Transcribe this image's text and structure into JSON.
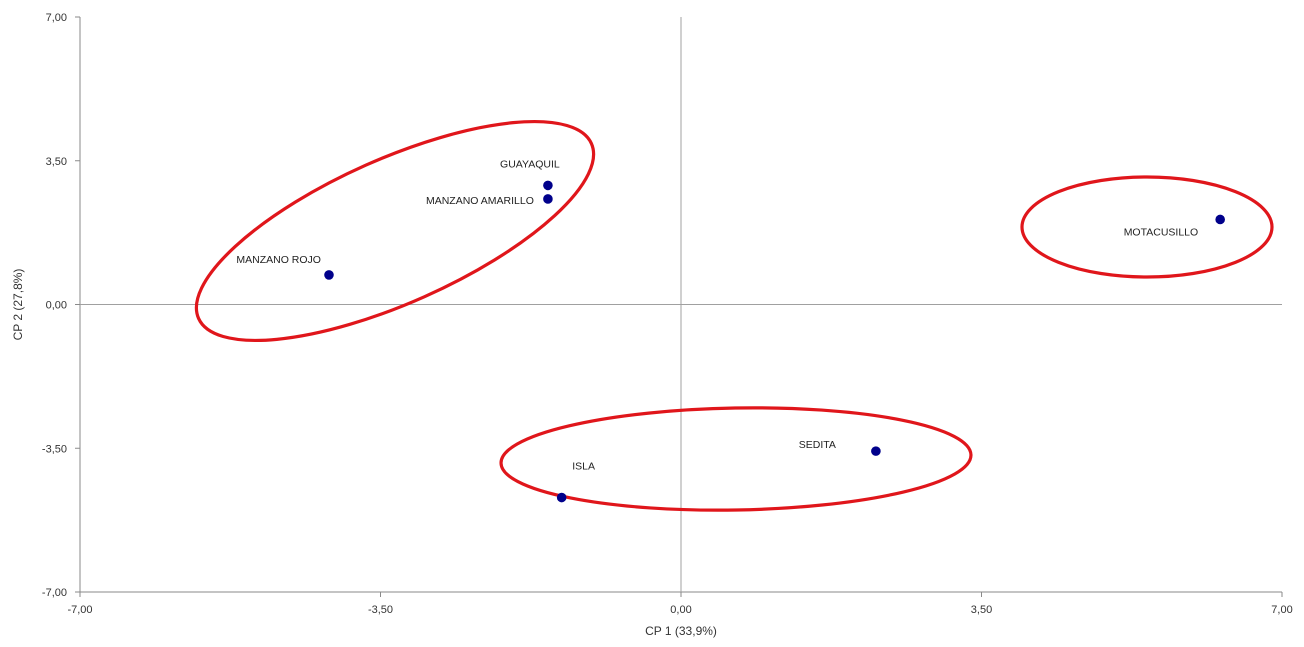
{
  "chart_data": {
    "type": "scatter",
    "xlabel": "CP 1 (33,9%)",
    "ylabel": "CP 2 (27,8%)",
    "xlim": [
      -7.0,
      7.0
    ],
    "ylim": [
      -7.0,
      7.0
    ],
    "xticks": [
      "-7,00",
      "-3,50",
      "0,00",
      "3,50",
      "7,00"
    ],
    "yticks": [
      "7,00",
      "3,50",
      "0,00",
      "-3,50",
      "-7,00"
    ],
    "grid": false,
    "reference_lines": "zero lines at x = 0 and y = 0",
    "point_color": "#00008b",
    "ellipse_color": "#e0161b",
    "points": [
      {
        "label": "GUAYAQUIL",
        "x": -1.55,
        "y": 2.9
      },
      {
        "label": "MANZANO AMARILLO",
        "x": -1.55,
        "y": 2.57
      },
      {
        "label": "MANZANO ROJO",
        "x": -4.1,
        "y": 0.72
      },
      {
        "label": "MOTACUSILLO",
        "x": 6.28,
        "y": 2.07
      },
      {
        "label": "SEDITA",
        "x": 2.27,
        "y": -3.57
      },
      {
        "label": "ISLA",
        "x": -1.39,
        "y": -4.7
      }
    ],
    "groups": [
      {
        "members": [
          "GUAYAQUIL",
          "MANZANO AMARILLO",
          "MANZANO ROJO"
        ]
      },
      {
        "members": [
          "MOTACUSILLO"
        ]
      },
      {
        "members": [
          "ISLA",
          "SEDITA"
        ]
      }
    ]
  }
}
